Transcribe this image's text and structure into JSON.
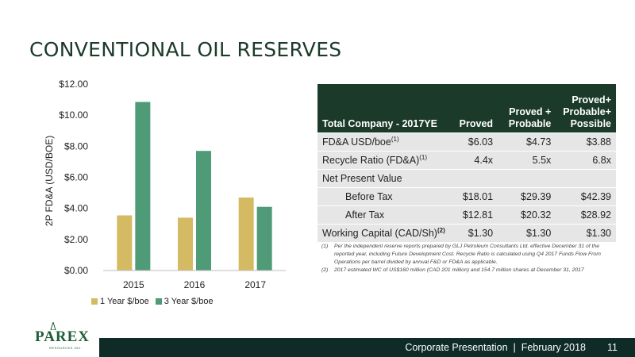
{
  "page": {
    "title": "CONVENTIONAL OIL RESERVES",
    "footer": "Corporate Presentation  |  February 2018",
    "page_number": "11",
    "logo_text": "PAREX",
    "logo_sub": "RESOURCES INC."
  },
  "colors": {
    "series1": "#d4bb63",
    "series2": "#4f9a77",
    "header_bg": "#1b3a2a",
    "row_bg": "#e6e6e6",
    "footer_bg": "#0e2b27"
  },
  "chart_data": {
    "type": "bar",
    "categories": [
      "2015",
      "2016",
      "2017"
    ],
    "series": [
      {
        "name": "1 Year $/boe",
        "values": [
          3.55,
          3.4,
          4.7
        ]
      },
      {
        "name": "3 Year $/boe",
        "values": [
          10.85,
          7.7,
          4.1
        ]
      }
    ],
    "ylabel": "2P FD&A (USD/BOE)",
    "ylim": [
      0,
      12
    ],
    "yticks": [
      "$0.00",
      "$2.00",
      "$4.00",
      "$6.00",
      "$8.00",
      "$10.00",
      "$12.00"
    ],
    "ytick_values": [
      0,
      2,
      4,
      6,
      8,
      10,
      12
    ],
    "legend": "bottom",
    "grid": false
  },
  "table": {
    "headers": [
      "Total Company - 2017YE",
      "Proved",
      "Proved + Probable",
      "Proved+ Probable+ Possible"
    ],
    "rows": [
      {
        "label": "FD&A USD/boe",
        "sup": "(1)",
        "values": [
          "$6.03",
          "$4.73",
          "$3.88"
        ]
      },
      {
        "label": "Recycle Ratio (FD&A)",
        "sup": "(1)",
        "values": [
          "4.4x",
          "5.5x",
          "6.8x"
        ]
      },
      {
        "label": "Net Present Value",
        "sup": "",
        "values": [
          "",
          "",
          ""
        ]
      },
      {
        "label": "Before Tax",
        "sup": "",
        "values": [
          "$18.01",
          "$29.39",
          "$42.39"
        ]
      },
      {
        "label": "After Tax",
        "sup": "",
        "values": [
          "$12.81",
          "$20.32",
          "$28.92"
        ]
      },
      {
        "label": "Working Capital (CAD/Sh)",
        "sup": "(2)",
        "values": [
          "$1.30",
          "$1.30",
          "$1.30"
        ]
      }
    ]
  },
  "notes": [
    {
      "num": "(1)",
      "text": "Per the independent reserve reports prepared by GLJ Petroleum Consultants Ltd. effective December 31 of the reported year, including Future Development Cost. Recycle Ratio is calculated using Q4 2017 Funds Flow From Operations per barrel divided  by annual F&D or FD&A as applicable."
    },
    {
      "num": "(2)",
      "text": "2017 estimated WC of  US$160 million (CAD 201 million) and 154.7 million shares at December 31, 2017"
    }
  ]
}
